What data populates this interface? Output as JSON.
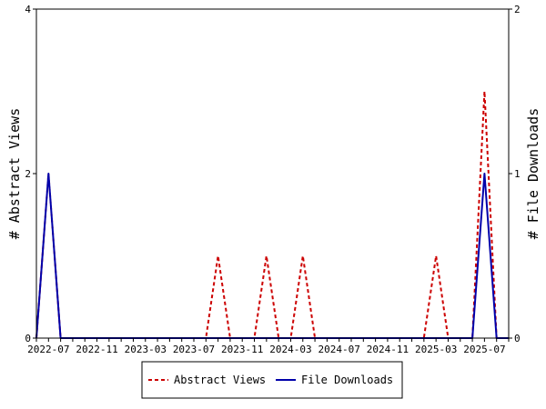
{
  "chart_data": {
    "type": "line",
    "x": [
      "2022-06",
      "2022-07",
      "2022-08",
      "2022-09",
      "2022-10",
      "2022-11",
      "2022-12",
      "2023-01",
      "2023-02",
      "2023-03",
      "2023-04",
      "2023-05",
      "2023-06",
      "2023-07",
      "2023-08",
      "2023-09",
      "2023-10",
      "2023-11",
      "2023-12",
      "2024-01",
      "2024-02",
      "2024-03",
      "2024-04",
      "2024-05",
      "2024-06",
      "2024-07",
      "2024-08",
      "2024-09",
      "2024-10",
      "2024-11",
      "2024-12",
      "2025-01",
      "2025-02",
      "2025-03",
      "2025-04",
      "2025-05",
      "2025-06",
      "2025-07",
      "2025-08",
      "2025-09"
    ],
    "xticks": [
      "2022-07",
      "2022-11",
      "2023-03",
      "2023-07",
      "2023-11",
      "2024-03",
      "2024-07",
      "2024-11",
      "2025-03",
      "2025-07"
    ],
    "series": [
      {
        "name": "Abstract Views",
        "axis": "left",
        "color": "#cc0000",
        "style": "dashed",
        "values": [
          0,
          2,
          0,
          0,
          0,
          0,
          0,
          0,
          0,
          0,
          0,
          0,
          0,
          0,
          0,
          1,
          0,
          0,
          0,
          1,
          0,
          0,
          1,
          0,
          0,
          0,
          0,
          0,
          0,
          0,
          0,
          0,
          0,
          1,
          0,
          0,
          0,
          3,
          0,
          0
        ]
      },
      {
        "name": "File Downloads",
        "axis": "right",
        "color": "#0000aa",
        "style": "solid",
        "values": [
          0,
          1,
          0,
          0,
          0,
          0,
          0,
          0,
          0,
          0,
          0,
          0,
          0,
          0,
          0,
          0,
          0,
          0,
          0,
          0,
          0,
          0,
          0,
          0,
          0,
          0,
          0,
          0,
          0,
          0,
          0,
          0,
          0,
          0,
          0,
          0,
          0,
          1,
          0,
          0
        ]
      }
    ],
    "ylabel_left": "# Abstract Views",
    "ylabel_right": "# File Downloads",
    "ylim_left": [
      0,
      4
    ],
    "ylim_right": [
      0,
      2
    ],
    "yticks_left": [
      "0",
      "2",
      "4"
    ],
    "yticks_right": [
      "0",
      "1",
      "2"
    ],
    "legend": [
      "Abstract Views",
      "File Downloads"
    ],
    "legend_position": "bottom-center",
    "grid": false
  }
}
